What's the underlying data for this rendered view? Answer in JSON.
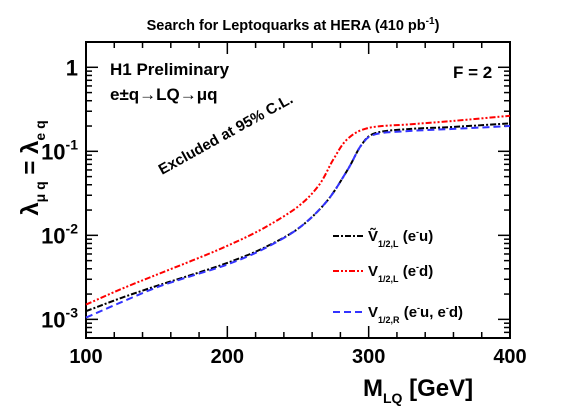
{
  "chart_data": {
    "type": "line",
    "title": {
      "main": "Search for Leptoquarks at HERA (410 pb",
      "sup": "-1",
      "close": ")"
    },
    "xlabel": {
      "main": "M",
      "sub": "LQ",
      "rest": " [GeV]"
    },
    "ylabel": {
      "lambda1": "λ",
      "sub1": "μ q",
      "eq": " = ",
      "lambda2": "λ",
      "sub2": "e q"
    },
    "x_ticks": [
      "100",
      "200",
      "300",
      "400"
    ],
    "xlim": [
      100,
      400
    ],
    "ylim": [
      0.0006,
      2
    ],
    "yscale": "log",
    "y_ticks": [
      {
        "value": 0.001,
        "base": "10",
        "exp": "-3"
      },
      {
        "value": 0.01,
        "base": "10",
        "exp": "-2"
      },
      {
        "value": 0.1,
        "base": "10",
        "exp": "-1"
      },
      {
        "value": 1,
        "base": "1",
        "exp": ""
      }
    ],
    "annotations": {
      "experiment": "H1 Preliminary",
      "process": "e±q→LQ→μq",
      "excluded": "Excluded at 95% C.L.",
      "fermion": "F = 2"
    },
    "series": [
      {
        "legend_main": "Ṽ",
        "legend_sub": "1/2,L",
        "legend_rest": " (e",
        "legend_sup": "-",
        "legend_end": "u)",
        "color": "#000000",
        "dash": "6,2,2,2",
        "points": [
          [
            100,
            0.00125
          ],
          [
            125,
            0.0018
          ],
          [
            150,
            0.0025
          ],
          [
            175,
            0.0034
          ],
          [
            200,
            0.0047
          ],
          [
            225,
            0.007
          ],
          [
            250,
            0.012
          ],
          [
            270,
            0.025
          ],
          [
            285,
            0.06
          ],
          [
            295,
            0.12
          ],
          [
            305,
            0.165
          ],
          [
            330,
            0.185
          ],
          [
            360,
            0.195
          ],
          [
            400,
            0.215
          ]
        ]
      },
      {
        "legend_main": "V",
        "legend_sub": "1/2,L",
        "legend_rest": " (e",
        "legend_sup": "-",
        "legend_end": "d)",
        "color": "#ff0000",
        "dash": "6,2,2,2,2,2",
        "points": [
          [
            100,
            0.0015
          ],
          [
            125,
            0.0023
          ],
          [
            150,
            0.0034
          ],
          [
            175,
            0.005
          ],
          [
            200,
            0.0075
          ],
          [
            225,
            0.012
          ],
          [
            250,
            0.022
          ],
          [
            265,
            0.04
          ],
          [
            275,
            0.08
          ],
          [
            285,
            0.14
          ],
          [
            300,
            0.19
          ],
          [
            330,
            0.21
          ],
          [
            360,
            0.23
          ],
          [
            400,
            0.265
          ]
        ]
      },
      {
        "legend_main": "V",
        "legend_sub": "1/2,R",
        "legend_rest": " (e",
        "legend_sup": "-",
        "legend_mid": "u, e",
        "legend_sup2": "-",
        "legend_end": "d)",
        "color": "#3333ff",
        "dash": "7,4",
        "points": [
          [
            100,
            0.00105
          ],
          [
            125,
            0.0016
          ],
          [
            150,
            0.0024
          ],
          [
            175,
            0.0033
          ],
          [
            200,
            0.0045
          ],
          [
            225,
            0.0068
          ],
          [
            250,
            0.012
          ],
          [
            270,
            0.025
          ],
          [
            285,
            0.06
          ],
          [
            295,
            0.12
          ],
          [
            305,
            0.16
          ],
          [
            330,
            0.175
          ],
          [
            360,
            0.185
          ],
          [
            400,
            0.2
          ]
        ]
      }
    ]
  }
}
